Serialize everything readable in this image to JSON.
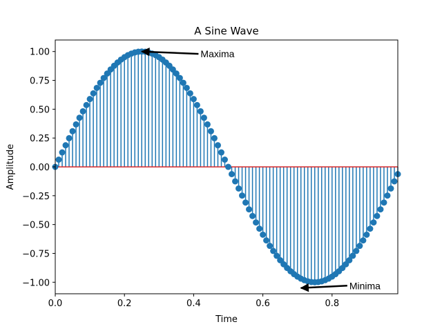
{
  "chart_data": {
    "type": "stem",
    "title": "A Sine Wave",
    "xlabel": "Time",
    "ylabel": "Amplitude",
    "xlim": [
      0,
      0.99
    ],
    "ylim": [
      -1.1,
      1.1
    ],
    "x_ticks": [
      0.0,
      0.2,
      0.4,
      0.6,
      0.8
    ],
    "x_tick_labels": [
      "0.0",
      "0.2",
      "0.4",
      "0.6",
      "0.8"
    ],
    "y_ticks": [
      1.0,
      0.75,
      0.5,
      0.25,
      0.0,
      -0.25,
      -0.5,
      -0.75,
      -1.0
    ],
    "y_tick_labels": [
      "1.00",
      "0.75",
      "0.50",
      "0.25",
      "0.00",
      "−0.25",
      "−0.50",
      "−0.75",
      "−1.00"
    ],
    "series": [
      {
        "function": "sin(2*pi*x)",
        "x_start": 0.0,
        "x_end": 0.99,
        "x_step": 0.01,
        "color": "#1f77b4"
      }
    ],
    "baseline": {
      "y": 0,
      "color": "#d62728"
    },
    "annotations": [
      {
        "text": "Maxima",
        "xy": [
          0.25,
          1.0
        ],
        "xytext": [
          0.42,
          0.98
        ]
      },
      {
        "text": "Minima",
        "xy": [
          0.71,
          -1.05
        ],
        "xytext": [
          0.85,
          -1.03
        ]
      }
    ],
    "grid": false
  }
}
